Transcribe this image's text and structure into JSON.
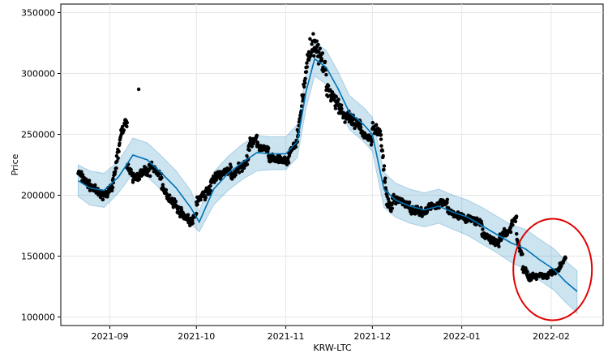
{
  "chart_data": {
    "type": "line",
    "title": "",
    "xlabel": "KRW-LTC",
    "ylabel": "Price",
    "x_range": [
      "2021-08-15",
      "2022-02-19"
    ],
    "ylim": [
      93000,
      357000
    ],
    "x_ticks": [
      "2021-09-01",
      "2021-10-01",
      "2021-11-01",
      "2021-12-01",
      "2022-01-01",
      "2022-02-01"
    ],
    "x_tick_labels": [
      "2021-09",
      "2021-10",
      "2021-11",
      "2021-12",
      "2022-01",
      "2022-02"
    ],
    "y_ticks": [
      100000,
      150000,
      200000,
      250000,
      300000,
      350000
    ],
    "y_tick_labels": [
      "100000",
      "150000",
      "200000",
      "250000",
      "300000",
      "350000"
    ],
    "grid": true,
    "colors": {
      "observed": "#000000",
      "forecast_line": "#0072b2",
      "uncertainty_band": "#0072b2",
      "annotation_circle": "#e00000"
    },
    "series": [
      {
        "kind": "forecast",
        "x": [
          "2021-08-21",
          "2021-08-25",
          "2021-08-30",
          "2021-09-04",
          "2021-09-09",
          "2021-09-14",
          "2021-09-19",
          "2021-09-24",
          "2021-09-29",
          "2021-10-02",
          "2021-10-07",
          "2021-10-12",
          "2021-10-17",
          "2021-10-22",
          "2021-10-27",
          "2021-11-01",
          "2021-11-05",
          "2021-11-08",
          "2021-11-11",
          "2021-11-15",
          "2021-11-19",
          "2021-11-23",
          "2021-11-28",
          "2021-12-01",
          "2021-12-05",
          "2021-12-09",
          "2021-12-14",
          "2021-12-19",
          "2021-12-24",
          "2021-12-29",
          "2022-01-03",
          "2022-01-08",
          "2022-01-13",
          "2022-01-18",
          "2022-01-23",
          "2022-01-28",
          "2022-02-02",
          "2022-02-06",
          "2022-02-10"
        ],
        "yhat": [
          212000,
          206000,
          204000,
          215000,
          233000,
          229000,
          218000,
          206000,
          190000,
          178000,
          205000,
          218000,
          227000,
          235000,
          234000,
          234000,
          244000,
          285000,
          312000,
          305000,
          288000,
          268000,
          258000,
          250000,
          205000,
          196000,
          191000,
          188000,
          191000,
          186000,
          182000,
          175000,
          168000,
          161000,
          156000,
          147000,
          139000,
          129000,
          121000
        ],
        "lower": [
          199000,
          192000,
          190000,
          202000,
          218000,
          215000,
          204000,
          192000,
          177000,
          170000,
          192000,
          204000,
          213000,
          220000,
          221000,
          221000,
          231000,
          271000,
          298000,
          291000,
          274000,
          254000,
          244000,
          236000,
          190000,
          182000,
          177000,
          174000,
          177000,
          172000,
          167000,
          160000,
          153000,
          145000,
          139000,
          130000,
          122000,
          112000,
          103000
        ],
        "upper": [
          225000,
          220000,
          218000,
          228000,
          247000,
          243000,
          232000,
          220000,
          204000,
          187000,
          219000,
          232000,
          242000,
          249000,
          248000,
          248000,
          258000,
          299000,
          326000,
          319000,
          302000,
          282000,
          272000,
          264000,
          219000,
          210000,
          205000,
          202000,
          205000,
          200000,
          196000,
          190000,
          183000,
          176000,
          172000,
          164000,
          156000,
          146000,
          138000
        ]
      },
      {
        "kind": "observed",
        "segments": [
          {
            "from": "2021-08-21",
            "to": "2021-08-24",
            "start": 219000,
            "end": 210000,
            "noise": 6000
          },
          {
            "from": "2021-08-24",
            "to": "2021-08-29",
            "start": 210000,
            "end": 200000,
            "noise": 5000
          },
          {
            "from": "2021-08-29",
            "to": "2021-09-02",
            "start": 200000,
            "end": 205000,
            "noise": 5000
          },
          {
            "from": "2021-09-02",
            "to": "2021-09-05",
            "start": 210000,
            "end": 250000,
            "noise": 9000
          },
          {
            "from": "2021-09-05",
            "to": "2021-09-07",
            "start": 252000,
            "end": 262000,
            "noise": 6000
          },
          {
            "from": "2021-09-07",
            "to": "2021-09-09",
            "start": 225000,
            "end": 214000,
            "noise": 6000
          },
          {
            "from": "2021-09-09",
            "to": "2021-09-15",
            "start": 214000,
            "end": 221000,
            "noise": 7000
          },
          {
            "from": "2021-09-15",
            "to": "2021-09-19",
            "start": 225000,
            "end": 215000,
            "noise": 5000
          },
          {
            "from": "2021-09-19",
            "to": "2021-09-24",
            "start": 205000,
            "end": 192000,
            "noise": 6000
          },
          {
            "from": "2021-09-24",
            "to": "2021-09-29",
            "start": 190000,
            "end": 178000,
            "noise": 5000
          },
          {
            "from": "2021-09-29",
            "to": "2021-10-01",
            "start": 176000,
            "end": 185000,
            "noise": 4000
          },
          {
            "from": "2021-10-01",
            "to": "2021-10-06",
            "start": 195000,
            "end": 205000,
            "noise": 6000
          },
          {
            "from": "2021-10-06",
            "to": "2021-10-13",
            "start": 212000,
            "end": 222000,
            "noise": 6000
          },
          {
            "from": "2021-10-13",
            "to": "2021-10-19",
            "start": 215000,
            "end": 230000,
            "noise": 6000
          },
          {
            "from": "2021-10-19",
            "to": "2021-10-22",
            "start": 240000,
            "end": 248000,
            "noise": 6000
          },
          {
            "from": "2021-10-22",
            "to": "2021-10-26",
            "start": 240000,
            "end": 237000,
            "noise": 5000
          },
          {
            "from": "2021-10-26",
            "to": "2021-11-02",
            "start": 230000,
            "end": 228000,
            "noise": 5000
          },
          {
            "from": "2021-11-02",
            "to": "2021-11-05",
            "start": 235000,
            "end": 243000,
            "noise": 5000
          },
          {
            "from": "2021-11-05",
            "to": "2021-11-09",
            "start": 248000,
            "end": 318000,
            "noise": 10000
          },
          {
            "from": "2021-11-09",
            "to": "2021-11-12",
            "start": 320000,
            "end": 325000,
            "noise": 13000
          },
          {
            "from": "2021-11-12",
            "to": "2021-11-15",
            "start": 318000,
            "end": 300000,
            "noise": 12000
          },
          {
            "from": "2021-11-15",
            "to": "2021-11-21",
            "start": 290000,
            "end": 268000,
            "noise": 10000
          },
          {
            "from": "2021-11-21",
            "to": "2021-11-27",
            "start": 265000,
            "end": 256000,
            "noise": 8000
          },
          {
            "from": "2021-11-27",
            "to": "2021-12-01",
            "start": 252000,
            "end": 245000,
            "noise": 6000
          },
          {
            "from": "2021-12-01",
            "to": "2021-12-04",
            "start": 258000,
            "end": 250000,
            "noise": 7000
          },
          {
            "from": "2021-12-04",
            "to": "2021-12-06",
            "start": 245000,
            "end": 198000,
            "noise": 8000
          },
          {
            "from": "2021-12-06",
            "to": "2021-12-08",
            "start": 195000,
            "end": 190000,
            "noise": 8000
          },
          {
            "from": "2021-12-08",
            "to": "2021-12-14",
            "start": 198000,
            "end": 192000,
            "noise": 5000
          },
          {
            "from": "2021-12-14",
            "to": "2021-12-20",
            "start": 188000,
            "end": 186000,
            "noise": 5000
          },
          {
            "from": "2021-12-20",
            "to": "2021-12-27",
            "start": 190000,
            "end": 195000,
            "noise": 5000
          },
          {
            "from": "2021-12-27",
            "to": "2022-01-03",
            "start": 188000,
            "end": 180000,
            "noise": 4000
          },
          {
            "from": "2022-01-03",
            "to": "2022-01-08",
            "start": 182000,
            "end": 176000,
            "noise": 4000
          },
          {
            "from": "2022-01-08",
            "to": "2022-01-14",
            "start": 168000,
            "end": 160000,
            "noise": 5000
          },
          {
            "from": "2022-01-14",
            "to": "2022-01-18",
            "start": 165000,
            "end": 172000,
            "noise": 5000
          },
          {
            "from": "2022-01-18",
            "to": "2022-01-20",
            "start": 176000,
            "end": 182000,
            "noise": 5000
          },
          {
            "from": "2022-01-20",
            "to": "2022-01-22",
            "start": 165000,
            "end": 150000,
            "noise": 5000
          },
          {
            "from": "2022-01-22",
            "to": "2022-01-25",
            "start": 140000,
            "end": 132000,
            "noise": 5000
          },
          {
            "from": "2022-01-25",
            "to": "2022-01-31",
            "start": 133000,
            "end": 134000,
            "noise": 4000
          },
          {
            "from": "2022-01-31",
            "to": "2022-02-04",
            "start": 136000,
            "end": 140000,
            "noise": 4000
          },
          {
            "from": "2022-02-04",
            "to": "2022-02-06",
            "start": 142000,
            "end": 148000,
            "noise": 3000
          }
        ],
        "outliers": [
          {
            "x": "2021-09-11",
            "y": 287000
          }
        ]
      }
    ],
    "annotations": [
      {
        "type": "circle",
        "around_dates": [
          "2022-01-20",
          "2022-02-14"
        ],
        "around_values": [
          100000,
          178000
        ]
      }
    ]
  }
}
